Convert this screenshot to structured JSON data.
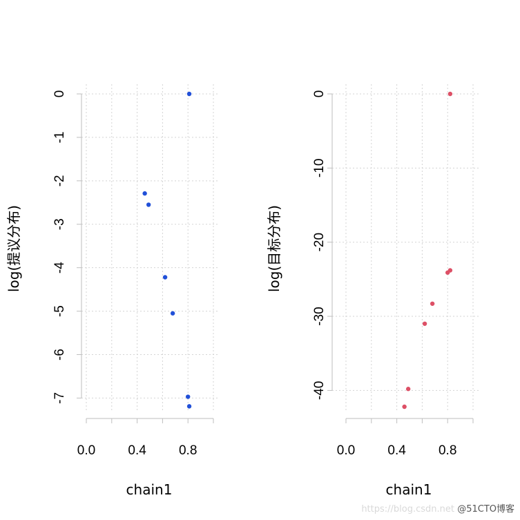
{
  "chart_data": [
    {
      "type": "scatter",
      "xlabel": "chain1",
      "ylabel": "log(提议分布)",
      "xlim": [
        0,
        1
      ],
      "ylim": [
        -7.2,
        0
      ],
      "x_ticks": [
        0.0,
        0.4,
        0.8
      ],
      "x_tick_labels": [
        "0.0",
        "0.4",
        "0.8"
      ],
      "x_grid": [
        0,
        0.2,
        0.4,
        0.6,
        0.8,
        1.0
      ],
      "y_ticks": [
        0,
        -1,
        -2,
        -3,
        -4,
        -5,
        -6,
        -7
      ],
      "y_tick_labels": [
        "0",
        "-1",
        "-2",
        "-3",
        "-4",
        "-5",
        "-6",
        "-7"
      ],
      "grid": true,
      "color": "#2150d8",
      "points": [
        {
          "x": 0.81,
          "y": 0.0
        },
        {
          "x": 0.46,
          "y": -2.29
        },
        {
          "x": 0.49,
          "y": -2.55
        },
        {
          "x": 0.62,
          "y": -4.22
        },
        {
          "x": 0.68,
          "y": -5.05
        },
        {
          "x": 0.8,
          "y": -6.97
        },
        {
          "x": 0.81,
          "y": -7.19
        }
      ]
    },
    {
      "type": "scatter",
      "xlabel": "chain1",
      "ylabel": "log(目标分布)",
      "xlim": [
        0,
        1
      ],
      "ylim": [
        -42.2,
        0
      ],
      "x_ticks": [
        0.0,
        0.4,
        0.8
      ],
      "x_tick_labels": [
        "0.0",
        "0.4",
        "0.8"
      ],
      "x_grid": [
        0,
        0.2,
        0.4,
        0.6,
        0.8,
        1.0
      ],
      "y_ticks": [
        0,
        -10,
        -20,
        -30,
        -40
      ],
      "y_tick_labels": [
        "0",
        "-10",
        "-20",
        "-30",
        "-40"
      ],
      "grid": true,
      "color": "#dd5066",
      "points": [
        {
          "x": 0.82,
          "y": 0.0
        },
        {
          "x": 0.82,
          "y": -23.8
        },
        {
          "x": 0.8,
          "y": -24.1
        },
        {
          "x": 0.68,
          "y": -28.3
        },
        {
          "x": 0.62,
          "y": -31.0
        },
        {
          "x": 0.49,
          "y": -39.8
        },
        {
          "x": 0.46,
          "y": -42.2
        }
      ]
    }
  ],
  "watermark": {
    "url": "https://blog.csdn.net",
    "brand": "@51CTO博客"
  }
}
